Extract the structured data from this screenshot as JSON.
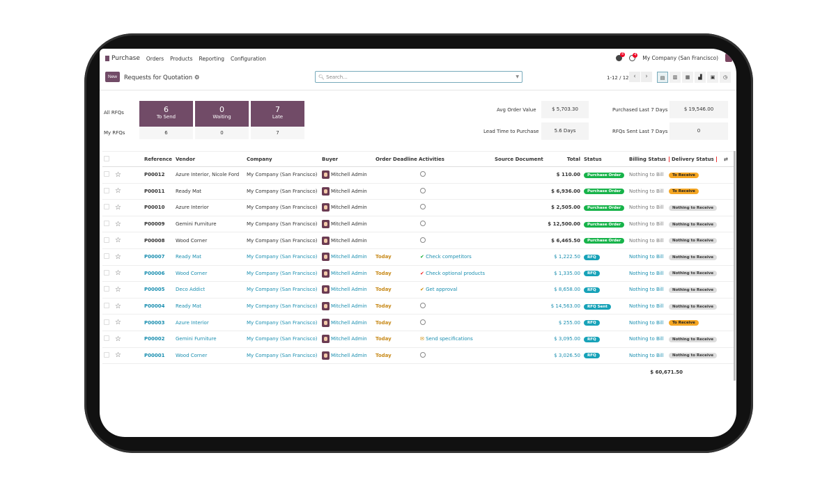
{
  "nav": {
    "app": "Purchase",
    "menu": [
      "Orders",
      "Products",
      "Reporting",
      "Configuration"
    ],
    "company": "My Company (San Francisco)",
    "msg_count": "8",
    "activity_count": "4"
  },
  "control": {
    "new_label": "New",
    "title": "Requests for Quotation",
    "search_placeholder": "Search...",
    "pager": "1-12 / 12"
  },
  "dashboard": {
    "all_label": "All RFQs",
    "my_label": "My RFQs",
    "tiles": [
      {
        "value": "6",
        "label": "To Send",
        "my": "6"
      },
      {
        "value": "0",
        "label": "Waiting",
        "my": "0"
      },
      {
        "value": "7",
        "label": "Late",
        "my": "7"
      }
    ],
    "kpis": [
      {
        "label": "Avg Order Value",
        "value": "$ 5,703.30"
      },
      {
        "label": "Purchased Last 7 Days",
        "value": "$ 19,546.00"
      },
      {
        "label": "Lead Time to Purchase",
        "value": "5.6 Days"
      },
      {
        "label": "RFQs Sent Last 7 Days",
        "value": "0"
      }
    ]
  },
  "table": {
    "headers": [
      "Reference",
      "Vendor",
      "Company",
      "Buyer",
      "Order Deadline",
      "Activities",
      "Source Document",
      "Total",
      "Status",
      "Billing Status",
      "Delivery Status"
    ],
    "rows": [
      {
        "ref": "P00012",
        "vendor": "Azure Interior, Nicole Ford",
        "company": "My Company (San Francisco)",
        "buyer": "Mitchell Admin",
        "deadline": "",
        "activity": "",
        "act_icon": "clock",
        "total": "$ 110.00",
        "status": "Purchase Order",
        "billing": "Nothing to Bill",
        "delivery": "To Receive"
      },
      {
        "ref": "P00011",
        "vendor": "Ready Mat",
        "company": "My Company (San Francisco)",
        "buyer": "Mitchell Admin",
        "deadline": "",
        "activity": "",
        "act_icon": "clock",
        "total": "$ 6,936.00",
        "status": "Purchase Order",
        "billing": "Nothing to Bill",
        "delivery": "To Receive"
      },
      {
        "ref": "P00010",
        "vendor": "Azure Interior",
        "company": "My Company (San Francisco)",
        "buyer": "Mitchell Admin",
        "deadline": "",
        "activity": "",
        "act_icon": "clock",
        "total": "$ 2,505.00",
        "status": "Purchase Order",
        "billing": "Nothing to Bill",
        "delivery": "Nothing to Receive"
      },
      {
        "ref": "P00009",
        "vendor": "Gemini Furniture",
        "company": "My Company (San Francisco)",
        "buyer": "Mitchell Admin",
        "deadline": "",
        "activity": "",
        "act_icon": "clock",
        "total": "$ 12,500.00",
        "status": "Purchase Order",
        "billing": "Nothing to Bill",
        "delivery": "Nothing to Receive"
      },
      {
        "ref": "P00008",
        "vendor": "Wood Corner",
        "company": "My Company (San Francisco)",
        "buyer": "Mitchell Admin",
        "deadline": "",
        "activity": "",
        "act_icon": "clock",
        "total": "$ 6,465.50",
        "status": "Purchase Order",
        "billing": "Nothing to Bill",
        "delivery": "Nothing to Receive"
      },
      {
        "ref": "P00007",
        "vendor": "Ready Mat",
        "company": "My Company (San Francisco)",
        "buyer": "Mitchell Admin",
        "deadline": "Today",
        "activity": "Check competitors",
        "act_icon": "check-green",
        "total": "$ 1,222.50",
        "status": "RFQ",
        "billing": "Nothing to Bill",
        "delivery": "Nothing to Receive"
      },
      {
        "ref": "P00006",
        "vendor": "Wood Corner",
        "company": "My Company (San Francisco)",
        "buyer": "Mitchell Admin",
        "deadline": "Today",
        "activity": "Check optional products",
        "act_icon": "check-red",
        "total": "$ 1,335.00",
        "status": "RFQ",
        "billing": "Nothing to Bill",
        "delivery": "Nothing to Receive"
      },
      {
        "ref": "P00005",
        "vendor": "Deco Addict",
        "company": "My Company (San Francisco)",
        "buyer": "Mitchell Admin",
        "deadline": "Today",
        "activity": "Get approval",
        "act_icon": "check-orange",
        "total": "$ 8,658.00",
        "status": "RFQ",
        "billing": "Nothing to Bill",
        "delivery": "Nothing to Receive"
      },
      {
        "ref": "P00004",
        "vendor": "Ready Mat",
        "company": "My Company (San Francisco)",
        "buyer": "Mitchell Admin",
        "deadline": "Today",
        "activity": "",
        "act_icon": "clock",
        "total": "$ 14,563.00",
        "status": "RFQ Sent",
        "billing": "Nothing to Bill",
        "delivery": "Nothing to Receive"
      },
      {
        "ref": "P00003",
        "vendor": "Azure Interior",
        "company": "My Company (San Francisco)",
        "buyer": "Mitchell Admin",
        "deadline": "Today",
        "activity": "",
        "act_icon": "clock",
        "total": "$ 255.00",
        "status": "RFQ",
        "billing": "Nothing to Bill",
        "delivery": "To Receive"
      },
      {
        "ref": "P00002",
        "vendor": "Gemini Furniture",
        "company": "My Company (San Francisco)",
        "buyer": "Mitchell Admin",
        "deadline": "Today",
        "activity": "Send specifications",
        "act_icon": "envelope",
        "total": "$ 3,095.00",
        "status": "RFQ",
        "billing": "Nothing to Bill",
        "delivery": "Nothing to Receive"
      },
      {
        "ref": "P00001",
        "vendor": "Wood Corner",
        "company": "My Company (San Francisco)",
        "buyer": "Mitchell Admin",
        "deadline": "Today",
        "activity": "",
        "act_icon": "clock",
        "total": "$ 3,026.50",
        "status": "RFQ",
        "billing": "Nothing to Bill",
        "delivery": "Nothing to Receive"
      }
    ],
    "grand_total": "$ 60,671.50"
  },
  "colors": {
    "brand": "#714b67",
    "link": "#1b8fb0",
    "po": "#17b34a",
    "rfq": "#17a2b8",
    "to_receive": "#f5a623"
  }
}
